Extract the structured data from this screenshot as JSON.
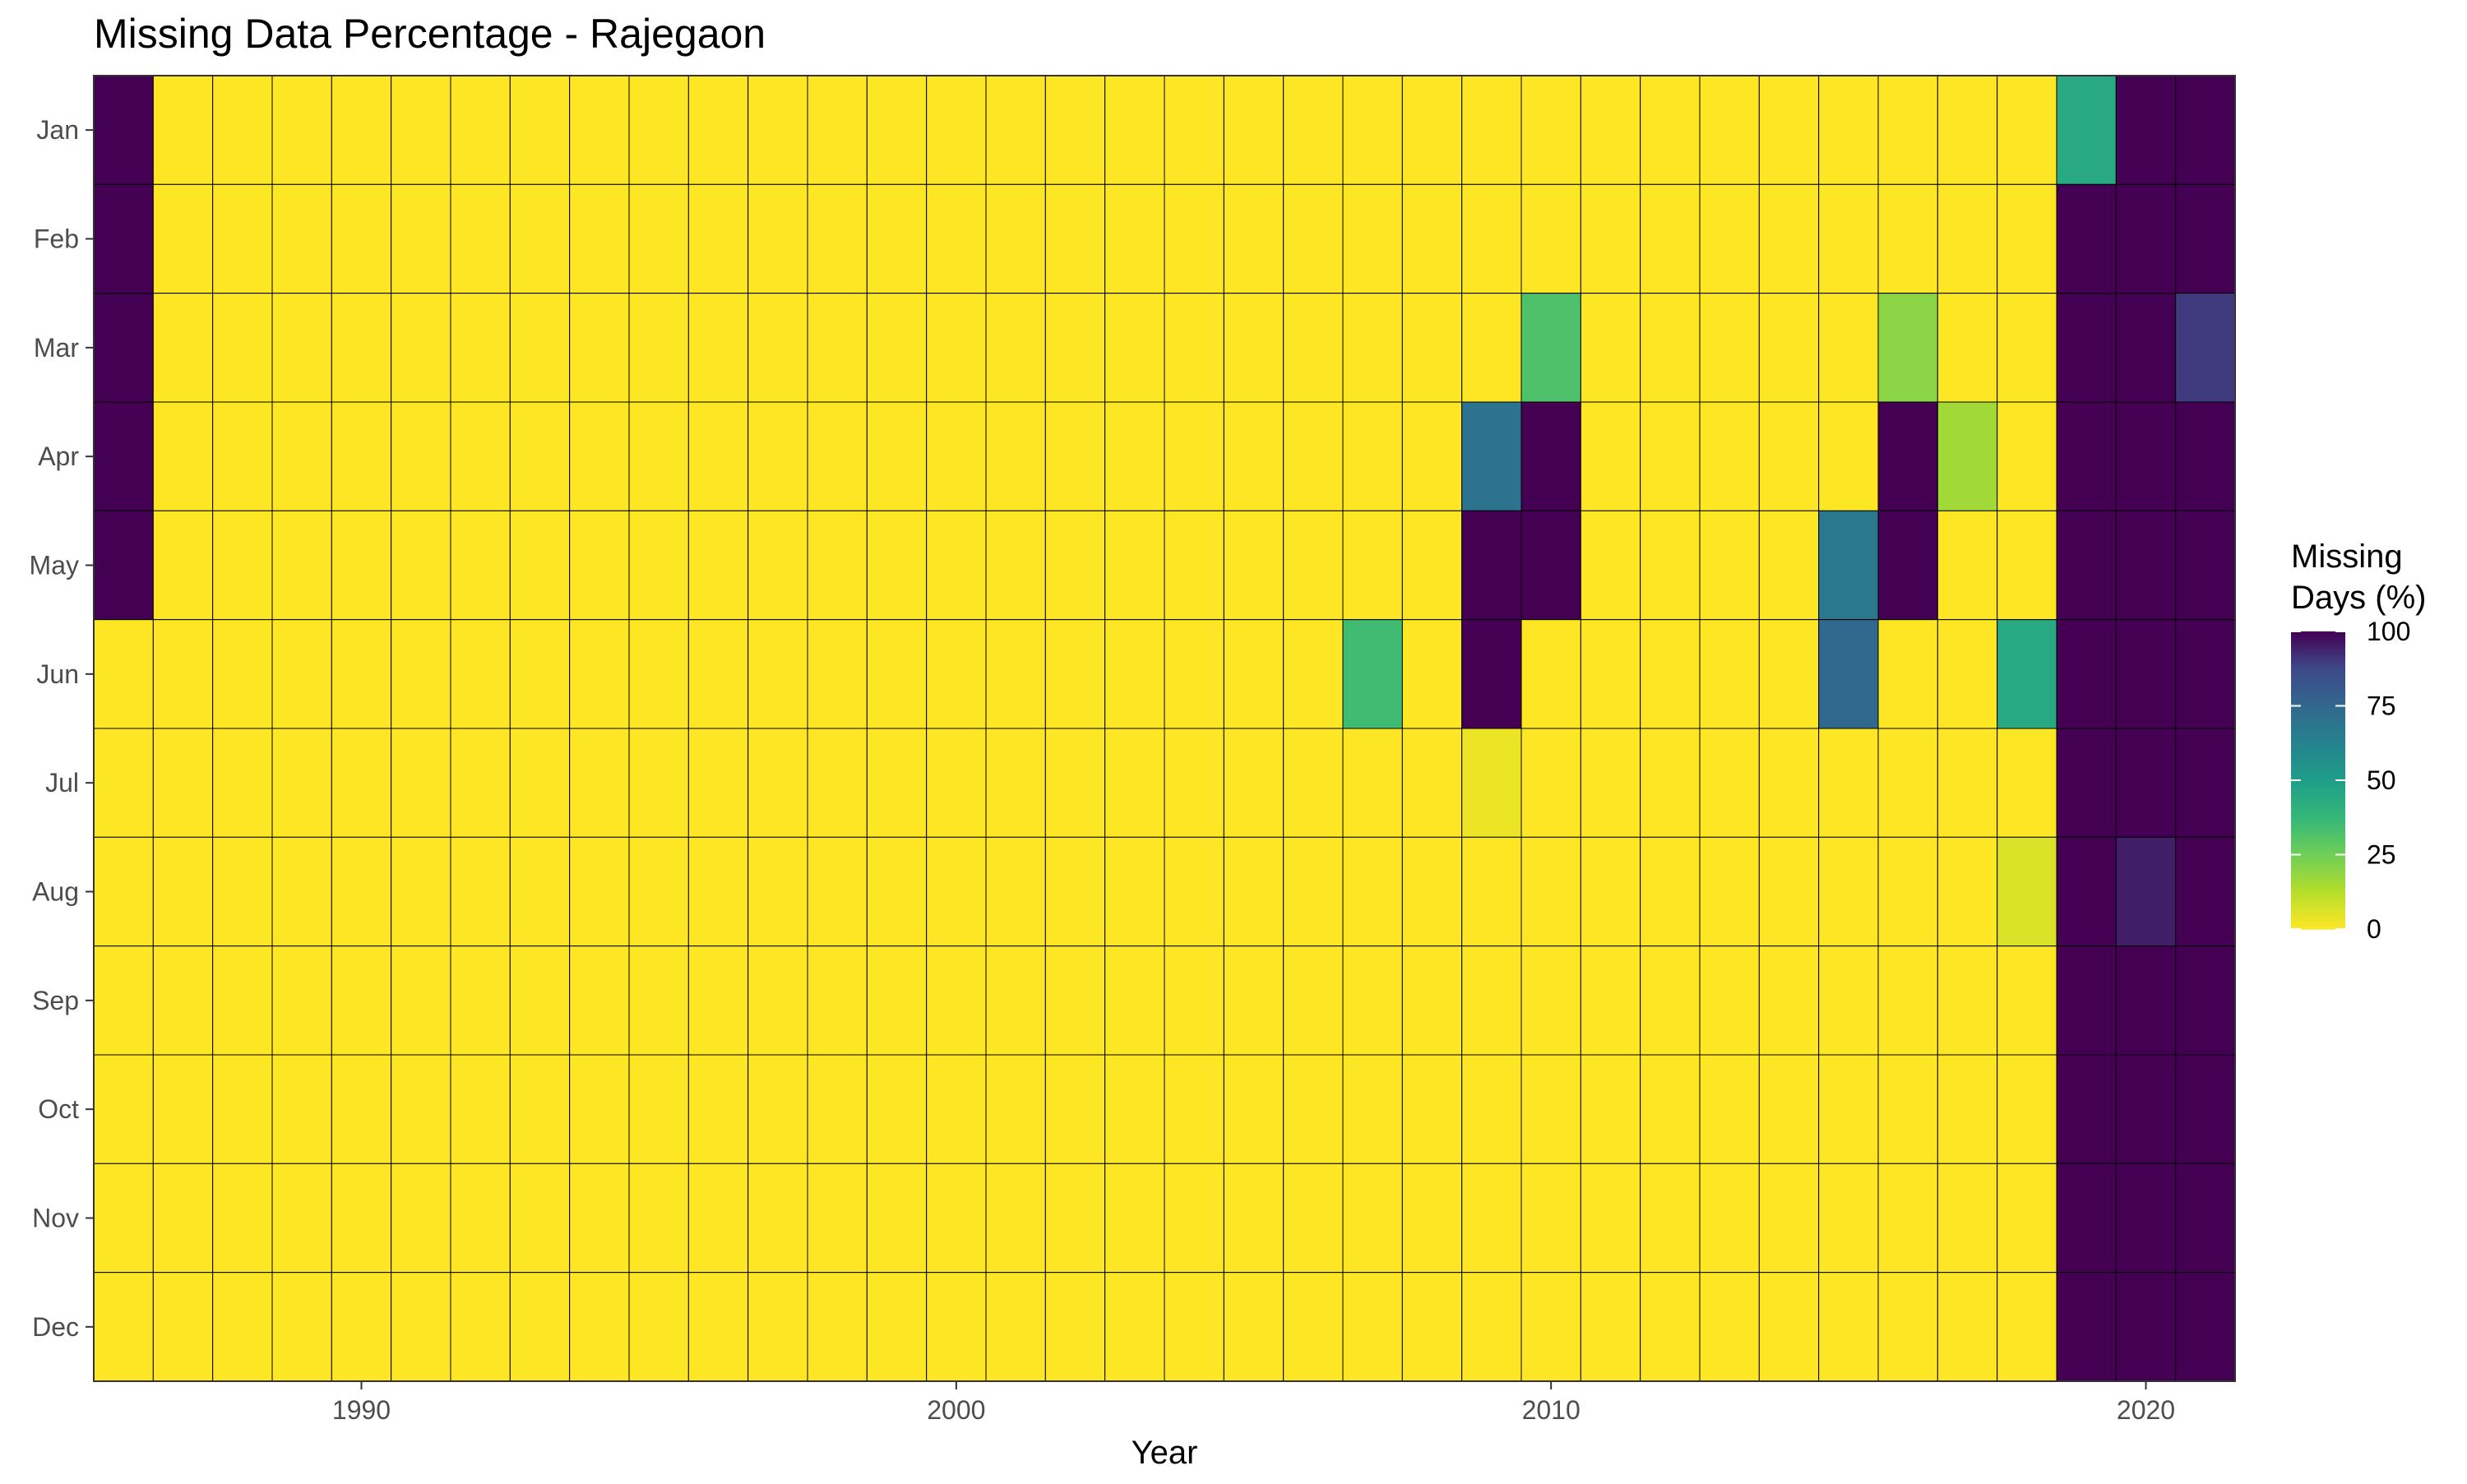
{
  "chart_data": {
    "type": "heatmap",
    "title": "Missing Data Percentage - Rajegaon",
    "xlabel": "Year",
    "ylabel": "",
    "x_ticks": [
      1990,
      2000,
      2010,
      2020
    ],
    "x_tick_labels": [
      "1990",
      "2000",
      "2010",
      "2020"
    ],
    "years": [
      1986,
      1987,
      1988,
      1989,
      1990,
      1991,
      1992,
      1993,
      1994,
      1995,
      1996,
      1997,
      1998,
      1999,
      2000,
      2001,
      2002,
      2003,
      2004,
      2005,
      2006,
      2007,
      2008,
      2009,
      2010,
      2011,
      2012,
      2013,
      2014,
      2015,
      2016,
      2017,
      2018,
      2019,
      2020,
      2021
    ],
    "months": [
      "Jan",
      "Feb",
      "Mar",
      "Apr",
      "May",
      "Jun",
      "Jul",
      "Aug",
      "Sep",
      "Oct",
      "Nov",
      "Dec"
    ],
    "values": [
      [
        100,
        0,
        0,
        0,
        0,
        0,
        0,
        0,
        0,
        0,
        0,
        0,
        0,
        0,
        0,
        0,
        0,
        0,
        0,
        0,
        0,
        0,
        0,
        0,
        0,
        0,
        0,
        0,
        0,
        0,
        0,
        0,
        0,
        45,
        100,
        100
      ],
      [
        100,
        0,
        0,
        0,
        0,
        0,
        0,
        0,
        0,
        0,
        0,
        0,
        0,
        0,
        0,
        0,
        0,
        0,
        0,
        0,
        0,
        0,
        0,
        0,
        0,
        0,
        0,
        0,
        0,
        0,
        0,
        0,
        0,
        100,
        100,
        100
      ],
      [
        100,
        0,
        0,
        0,
        0,
        0,
        0,
        0,
        0,
        0,
        0,
        0,
        0,
        0,
        0,
        0,
        0,
        0,
        0,
        0,
        0,
        0,
        0,
        0,
        32,
        0,
        0,
        0,
        0,
        0,
        20,
        0,
        0,
        100,
        100,
        90
      ],
      [
        100,
        0,
        0,
        0,
        0,
        0,
        0,
        0,
        0,
        0,
        0,
        0,
        0,
        0,
        0,
        0,
        0,
        0,
        0,
        0,
        0,
        0,
        0,
        70,
        100,
        0,
        0,
        0,
        0,
        0,
        100,
        16,
        0,
        100,
        100,
        100
      ],
      [
        100,
        0,
        0,
        0,
        0,
        0,
        0,
        0,
        0,
        0,
        0,
        0,
        0,
        0,
        0,
        0,
        0,
        0,
        0,
        0,
        0,
        0,
        0,
        100,
        100,
        0,
        0,
        0,
        0,
        68,
        100,
        0,
        0,
        100,
        100,
        100
      ],
      [
        0,
        0,
        0,
        0,
        0,
        0,
        0,
        0,
        0,
        0,
        0,
        0,
        0,
        0,
        0,
        0,
        0,
        0,
        0,
        0,
        0,
        35,
        0,
        100,
        0,
        0,
        0,
        0,
        0,
        75,
        0,
        0,
        45,
        100,
        100,
        100
      ],
      [
        0,
        0,
        0,
        0,
        0,
        0,
        0,
        0,
        0,
        0,
        0,
        0,
        0,
        0,
        0,
        0,
        0,
        0,
        0,
        0,
        0,
        0,
        0,
        3,
        0,
        0,
        0,
        0,
        0,
        0,
        0,
        0,
        0,
        100,
        100,
        100
      ],
      [
        0,
        0,
        0,
        0,
        0,
        0,
        0,
        0,
        0,
        0,
        0,
        0,
        0,
        0,
        0,
        0,
        0,
        0,
        0,
        0,
        0,
        0,
        0,
        0,
        0,
        0,
        0,
        0,
        0,
        0,
        0,
        0,
        6,
        100,
        95,
        100
      ],
      [
        0,
        0,
        0,
        0,
        0,
        0,
        0,
        0,
        0,
        0,
        0,
        0,
        0,
        0,
        0,
        0,
        0,
        0,
        0,
        0,
        0,
        0,
        0,
        0,
        0,
        0,
        0,
        0,
        0,
        0,
        0,
        0,
        0,
        100,
        100,
        100
      ],
      [
        0,
        0,
        0,
        0,
        0,
        0,
        0,
        0,
        0,
        0,
        0,
        0,
        0,
        0,
        0,
        0,
        0,
        0,
        0,
        0,
        0,
        0,
        0,
        0,
        0,
        0,
        0,
        0,
        0,
        0,
        0,
        0,
        0,
        100,
        100,
        100
      ],
      [
        0,
        0,
        0,
        0,
        0,
        0,
        0,
        0,
        0,
        0,
        0,
        0,
        0,
        0,
        0,
        0,
        0,
        0,
        0,
        0,
        0,
        0,
        0,
        0,
        0,
        0,
        0,
        0,
        0,
        0,
        0,
        0,
        0,
        100,
        100,
        100
      ],
      [
        0,
        0,
        0,
        0,
        0,
        0,
        0,
        0,
        0,
        0,
        0,
        0,
        0,
        0,
        0,
        0,
        0,
        0,
        0,
        0,
        0,
        0,
        0,
        0,
        0,
        0,
        0,
        0,
        0,
        0,
        0,
        0,
        0,
        100,
        100,
        100
      ]
    ],
    "legend": {
      "title_lines": [
        "Missing",
        "Days (%)"
      ],
      "ticks": [
        0,
        25,
        50,
        75,
        100
      ],
      "tick_labels": [
        "0",
        "25",
        "50",
        "75",
        "100"
      ],
      "range": [
        0,
        100
      ],
      "position": "right"
    },
    "colormap": "viridis (reversed)",
    "colors": {
      "low": "#FDE725",
      "high": "#440154",
      "cell_border": "#000000",
      "panel_border": "#333333",
      "axis_text": "#4D4D4D",
      "title_text": "#000000"
    },
    "grid": false
  }
}
